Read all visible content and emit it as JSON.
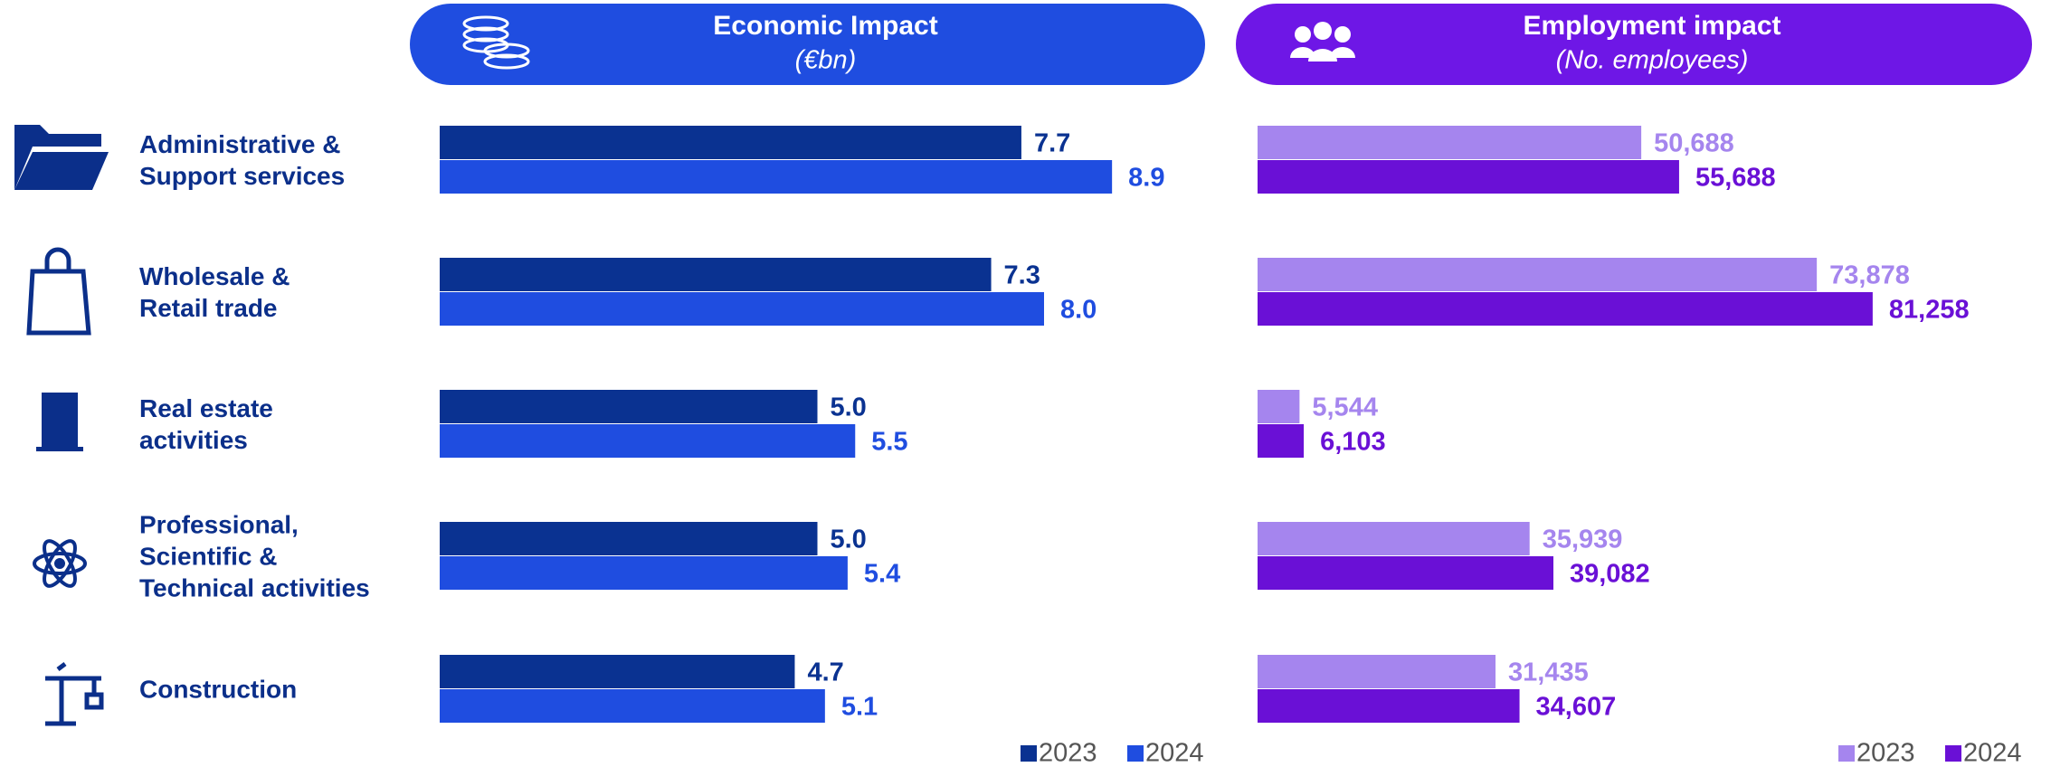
{
  "chart_data": [
    {
      "type": "bar",
      "orientation": "horizontal",
      "title": "Economic Impact",
      "subtitle": "(€bn)",
      "categories": [
        "Administrative &\nSupport services",
        "Wholesale &\nRetail trade",
        "Real estate\nactivities",
        "Professional,\nScientific &\nTechnical activities",
        "Construction"
      ],
      "series": [
        {
          "name": "2023",
          "color": "#0a3291",
          "values": [
            7.7,
            7.3,
            5.0,
            5.0,
            4.7
          ],
          "value_labels": [
            "7.7",
            "7.3",
            "5.0",
            "5.0",
            "4.7"
          ]
        },
        {
          "name": "2024",
          "color": "#1f4de0",
          "values": [
            8.9,
            8.0,
            5.5,
            5.4,
            5.1
          ],
          "value_labels": [
            "8.9",
            "8.0",
            "5.5",
            "5.4",
            "5.1"
          ]
        }
      ],
      "header_color": "#1f4de0",
      "legend": "bottom right"
    },
    {
      "type": "bar",
      "orientation": "horizontal",
      "title": "Employment impact",
      "subtitle": "(No. employees)",
      "series": [
        {
          "name": "2023",
          "color": "#a585ee",
          "values": [
            50688,
            73878,
            5544,
            35939,
            31435
          ],
          "value_labels": [
            "50,688",
            "73,878",
            "5,544",
            "35,939",
            "31,435"
          ]
        },
        {
          "name": "2024",
          "color": "#6a10d6",
          "values": [
            55688,
            81258,
            6103,
            39082,
            34607
          ],
          "value_labels": [
            "55,688",
            "81,258",
            "6,103",
            "39,082",
            "34,607"
          ]
        }
      ],
      "header_color": "#6e17e6",
      "legend": "bottom right"
    }
  ]
}
